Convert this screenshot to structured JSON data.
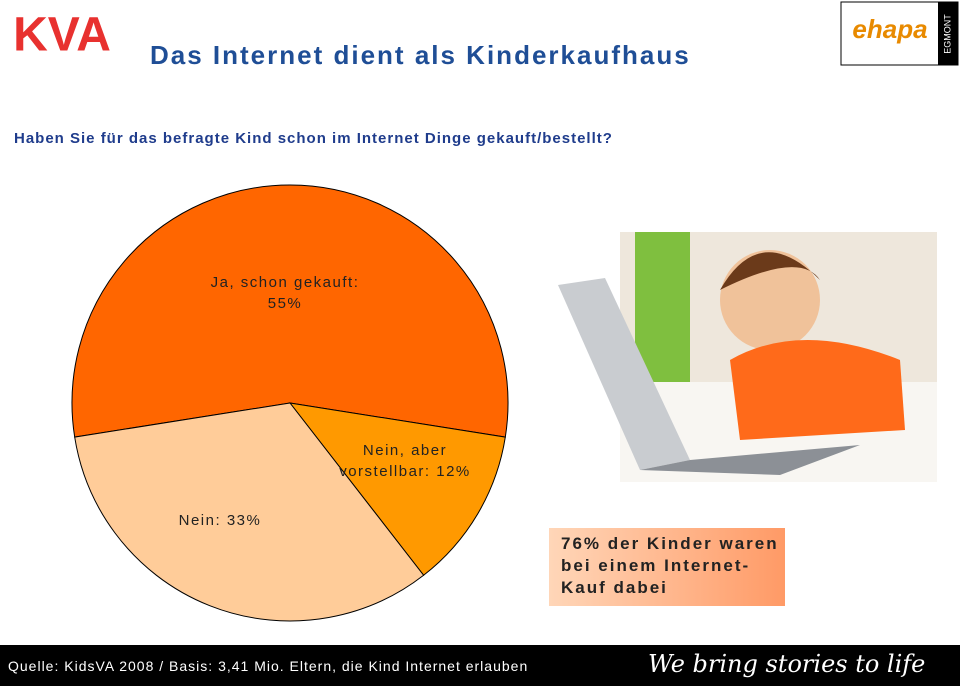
{
  "header": {
    "title": "Das Internet dient als Kinderkaufhaus",
    "logo_left": "KVA",
    "logo_right": "ehapa",
    "logo_right_brand": "EGMONT"
  },
  "question": "Haben Sie für das befragte Kind schon im Internet Dinge gekauft/bestellt?",
  "chart_data": {
    "type": "pie",
    "categories": [
      "Ja, schon gekauft:",
      "Nein, aber vorstellbar:",
      "Nein:"
    ],
    "values": [
      55,
      12,
      33
    ],
    "value_labels": [
      "55%",
      "12%",
      "33%"
    ],
    "colors": [
      "#ff6600",
      "#ff9900",
      "#ffcc99"
    ]
  },
  "callout": "76% der Kinder waren bei einem Internet-Kauf dabei",
  "footer": {
    "source": "Quelle: KidsVA 2008 / Basis: 3,41 Mio. Eltern, die Kind Internet erlauben",
    "slogan": "We bring stories to life"
  }
}
